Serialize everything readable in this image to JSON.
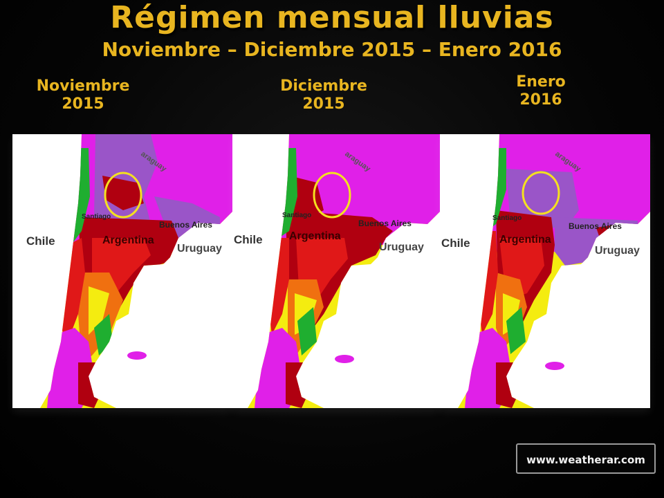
{
  "title": "Régimen mensual lluvias",
  "subtitle": "Noviembre – Diciembre 2015 – Enero 2016",
  "panels": [
    {
      "month": "Noviembre",
      "year": "2015"
    },
    {
      "month": "Diciembre",
      "year": "2015"
    },
    {
      "month": "Enero",
      "year": "2016"
    }
  ],
  "map_labels": {
    "chile": "Chile",
    "argentina": "Argentina",
    "uruguay": "Uruguay",
    "buenos_aires": "Buenos Aires",
    "santiago": "Santiago",
    "paraguay": "araguay"
  },
  "footer": {
    "website": "www.weatherar.com"
  },
  "colors": {
    "title": "#e8b520",
    "magenta": "#e020e8",
    "purple": "#9a55c8",
    "dark_red": "#b00010",
    "red": "#e01818",
    "orange": "#f07010",
    "yellow": "#f4ec10",
    "green": "#1fae30",
    "highlight_ellipse": "#f4e020"
  }
}
